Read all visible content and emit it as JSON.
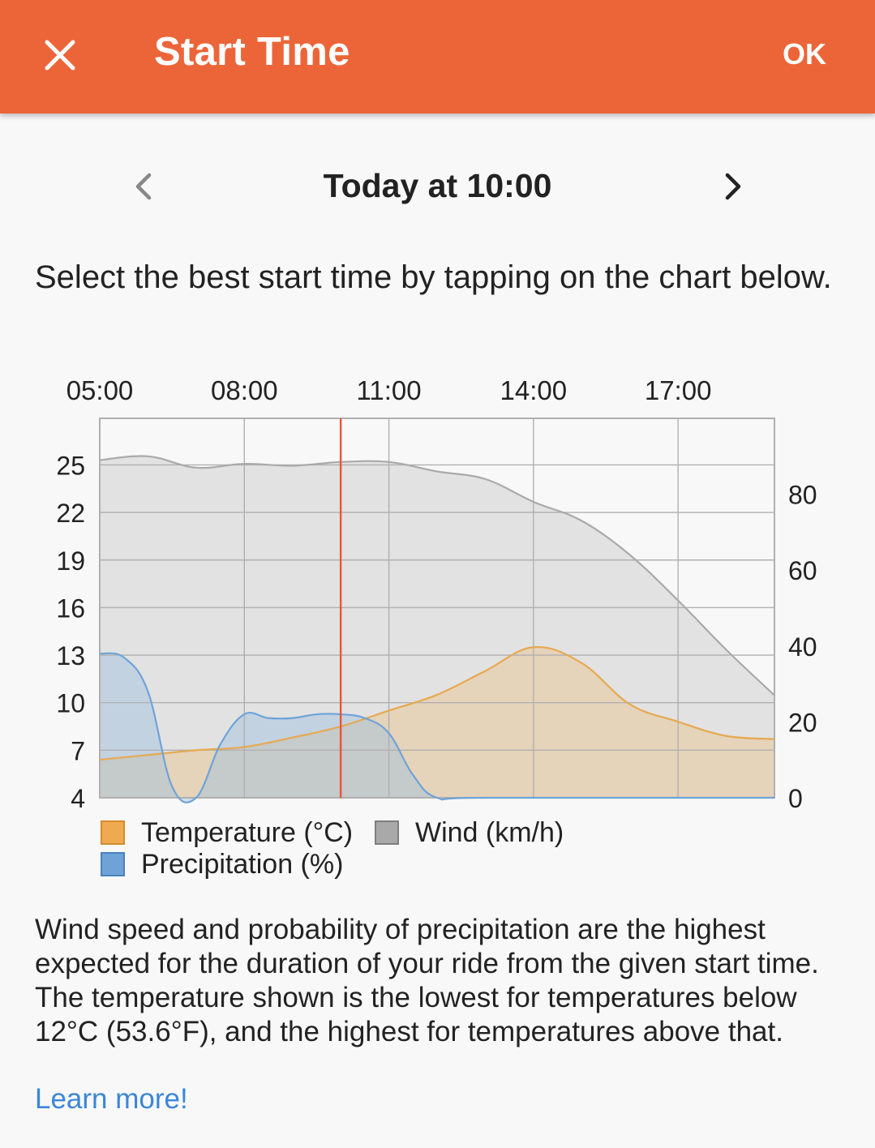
{
  "header": {
    "title": "Start Time",
    "ok_label": "OK",
    "close_icon": "close-icon",
    "background_color": "#ec6539"
  },
  "date_nav": {
    "current": "Today at 10:00",
    "prev_icon": "chevron-left-icon",
    "next_icon": "chevron-right-icon"
  },
  "instructions": "Select the best start time by tapping on the chart below.",
  "legend": {
    "temperature": "Temperature (°C)",
    "wind": "Wind (km/h)",
    "precipitation": "Precipitation (%)"
  },
  "note": "Wind speed and probability of precipitation are the highest expected for the duration of your ride from the given start time. The temperature shown is the lowest for temperatures below 12°C (53.6°F), and the highest for temperatures above that.",
  "learn_more": "Learn more!",
  "chart_data": {
    "type": "area",
    "x_tick_labels": [
      "05:00",
      "08:00",
      "11:00",
      "14:00",
      "17:00"
    ],
    "x_range_hours": [
      5,
      19
    ],
    "selected_time": "10:00",
    "left_axis": {
      "ticks": [
        25,
        22,
        19,
        16,
        13,
        10,
        7,
        4
      ],
      "range": [
        4,
        28
      ]
    },
    "right_axis": {
      "ticks": [
        80,
        60,
        40,
        20,
        0
      ],
      "range": [
        0,
        100
      ]
    },
    "grid": true,
    "colors": {
      "temperature": "#e8a94f",
      "wind": "#a8a8a8",
      "precipitation": "#6fa3d8",
      "selection": "#e8553a"
    },
    "series": [
      {
        "name": "Temperature (°C)",
        "axis": "left",
        "x": [
          5,
          6,
          7,
          8,
          9,
          10,
          11,
          12,
          13,
          14,
          15,
          16,
          17,
          18,
          19
        ],
        "values": [
          6.4,
          6.7,
          7,
          7.2,
          7.8,
          8.5,
          9.5,
          10.5,
          12,
          13.5,
          12.5,
          9.9,
          8.8,
          7.9,
          7.7
        ]
      },
      {
        "name": "Wind (km/h)",
        "axis": "right",
        "x": [
          5,
          6,
          7,
          8,
          9,
          10,
          11,
          12,
          13,
          14,
          15,
          16,
          17,
          18,
          19
        ],
        "values": [
          89,
          90,
          87,
          88,
          87.5,
          88.5,
          88.5,
          86,
          84,
          78,
          73,
          64,
          52,
          39,
          27
        ]
      },
      {
        "name": "Precipitation (%)",
        "axis": "right",
        "x": [
          5,
          5.5,
          6,
          6.5,
          7,
          7.5,
          8,
          8.5,
          9,
          9.5,
          10,
          10.5,
          11,
          11.5,
          12,
          13,
          19
        ],
        "values": [
          38,
          37,
          28,
          3,
          0,
          14,
          22,
          21,
          21,
          22,
          22,
          21,
          17,
          6,
          0,
          0,
          0
        ]
      }
    ]
  }
}
